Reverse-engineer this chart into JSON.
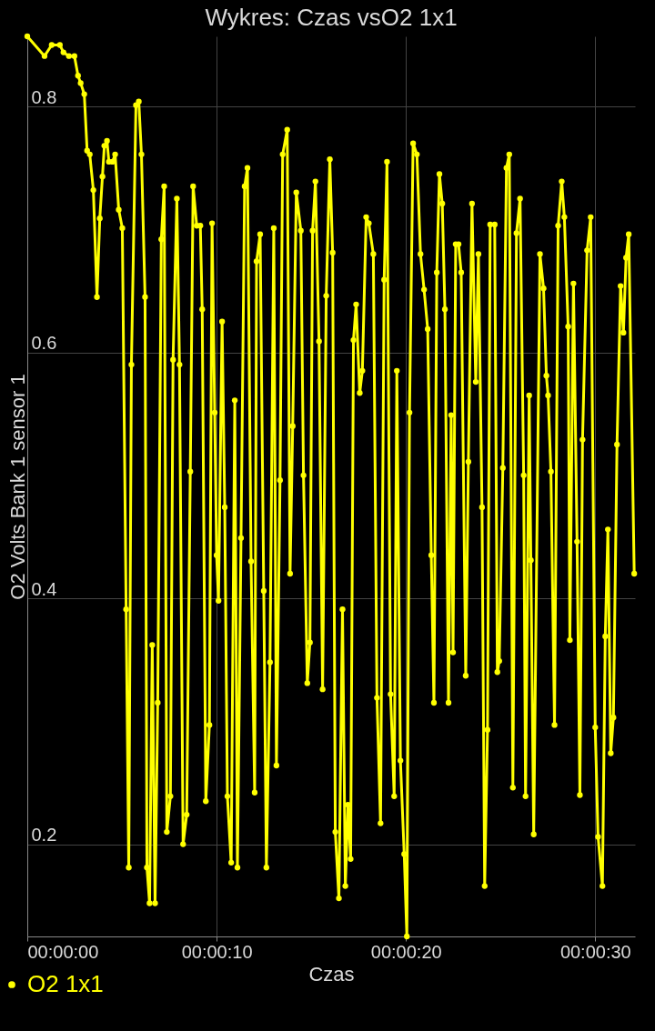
{
  "chart_data": {
    "type": "line",
    "title": "Wykres: Czas vsO2 1x1",
    "xlabel": "Czas",
    "ylabel": "O2 Volts Bank 1 sensor 1",
    "xlim": [
      0,
      32.1
    ],
    "ylim": [
      0.125,
      0.857
    ],
    "xticks": [
      {
        "value": 0,
        "label": "00:00:00"
      },
      {
        "value": 10,
        "label": "00:00:10"
      },
      {
        "value": 20,
        "label": "00:00:20"
      },
      {
        "value": 30,
        "label": "00:00:30"
      }
    ],
    "yticks": [
      0.2,
      0.4,
      0.6,
      0.8
    ],
    "grid": true,
    "legend": "bottom left",
    "marker": "circle",
    "line_style": "solid",
    "series": [
      {
        "name": "O2 1x1",
        "color": "#ffff00",
        "x": [
          0,
          0.91,
          1.29,
          1.72,
          1.91,
          2.2,
          2.49,
          2.68,
          2.82,
          3.01,
          3.16,
          3.3,
          3.49,
          3.68,
          3.83,
          3.97,
          4.07,
          4.21,
          4.31,
          4.5,
          4.64,
          4.83,
          5.02,
          5.22,
          5.36,
          5.5,
          5.74,
          5.89,
          6.03,
          6.22,
          6.32,
          6.46,
          6.6,
          6.75,
          6.89,
          7.08,
          7.23,
          7.37,
          7.56,
          7.7,
          7.9,
          8.04,
          8.23,
          8.42,
          8.61,
          8.76,
          8.95,
          9.14,
          9.24,
          9.43,
          9.62,
          9.76,
          9.9,
          10.0,
          10.1,
          10.29,
          10.43,
          10.57,
          10.77,
          10.96,
          11.1,
          11.29,
          11.48,
          11.63,
          11.82,
          12.01,
          12.11,
          12.3,
          12.49,
          12.63,
          12.82,
          13.02,
          13.16,
          13.35,
          13.49,
          13.73,
          13.88,
          14.02,
          14.21,
          14.45,
          14.59,
          14.79,
          14.93,
          15.07,
          15.22,
          15.41,
          15.6,
          15.79,
          15.98,
          16.13,
          16.27,
          16.46,
          16.65,
          16.8,
          16.94,
          17.08,
          17.23,
          17.37,
          17.56,
          17.7,
          17.9,
          18.04,
          18.28,
          18.47,
          18.66,
          18.85,
          19.0,
          19.19,
          19.38,
          19.52,
          19.71,
          19.91,
          20.05,
          20.19,
          20.38,
          20.58,
          20.77,
          20.96,
          21.15,
          21.34,
          21.48,
          21.63,
          21.77,
          21.92,
          22.06,
          22.25,
          22.39,
          22.49,
          22.63,
          22.78,
          22.92,
          23.16,
          23.3,
          23.49,
          23.69,
          23.83,
          24.02,
          24.16,
          24.31,
          24.45,
          24.69,
          24.83,
          24.93,
          25.12,
          25.31,
          25.46,
          25.65,
          25.84,
          26.03,
          26.22,
          26.32,
          26.51,
          26.6,
          26.75,
          27.08,
          27.27,
          27.42,
          27.51,
          27.66,
          27.85,
          28.04,
          28.23,
          28.37,
          28.57,
          28.66,
          28.85,
          29.04,
          29.19,
          29.33,
          29.57,
          29.76,
          30.0,
          30.15,
          30.38,
          30.53,
          30.67,
          30.82,
          30.96,
          31.15,
          31.34,
          31.49,
          31.63,
          31.77,
          32.06
        ],
        "values": [
          0.857,
          0.841,
          0.85,
          0.85,
          0.844,
          0.841,
          0.841,
          0.825,
          0.819,
          0.81,
          0.764,
          0.761,
          0.732,
          0.645,
          0.709,
          0.743,
          0.768,
          0.772,
          0.755,
          0.755,
          0.761,
          0.716,
          0.701,
          0.391,
          0.181,
          0.59,
          0.801,
          0.804,
          0.761,
          0.645,
          0.181,
          0.152,
          0.362,
          0.152,
          0.315,
          0.692,
          0.735,
          0.21,
          0.239,
          0.594,
          0.725,
          0.59,
          0.2,
          0.224,
          0.503,
          0.735,
          0.703,
          0.703,
          0.635,
          0.235,
          0.297,
          0.705,
          0.551,
          0.435,
          0.398,
          0.625,
          0.474,
          0.239,
          0.185,
          0.561,
          0.181,
          0.449,
          0.735,
          0.75,
          0.43,
          0.242,
          0.674,
          0.696,
          0.406,
          0.181,
          0.348,
          0.701,
          0.264,
          0.496,
          0.761,
          0.781,
          0.42,
          0.54,
          0.73,
          0.699,
          0.5,
          0.331,
          0.364,
          0.699,
          0.739,
          0.609,
          0.326,
          0.646,
          0.757,
          0.681,
          0.21,
          0.156,
          0.391,
          0.166,
          0.232,
          0.188,
          0.61,
          0.639,
          0.567,
          0.585,
          0.71,
          0.705,
          0.68,
          0.319,
          0.217,
          0.659,
          0.755,
          0.322,
          0.239,
          0.585,
          0.268,
          0.192,
          0.125,
          0.551,
          0.77,
          0.761,
          0.68,
          0.651,
          0.619,
          0.435,
          0.315,
          0.665,
          0.745,
          0.721,
          0.635,
          0.315,
          0.549,
          0.356,
          0.688,
          0.688,
          0.665,
          0.337,
          0.511,
          0.721,
          0.576,
          0.68,
          0.474,
          0.166,
          0.293,
          0.704,
          0.704,
          0.34,
          0.349,
          0.506,
          0.75,
          0.761,
          0.246,
          0.697,
          0.725,
          0.5,
          0.239,
          0.565,
          0.431,
          0.208,
          0.68,
          0.652,
          0.581,
          0.565,
          0.503,
          0.297,
          0.703,
          0.739,
          0.71,
          0.621,
          0.366,
          0.656,
          0.446,
          0.24,
          0.529,
          0.683,
          0.71,
          0.295,
          0.206,
          0.166,
          0.369,
          0.456,
          0.274,
          0.303,
          0.525,
          0.654,
          0.616,
          0.677,
          0.696,
          0.42
        ]
      }
    ]
  }
}
